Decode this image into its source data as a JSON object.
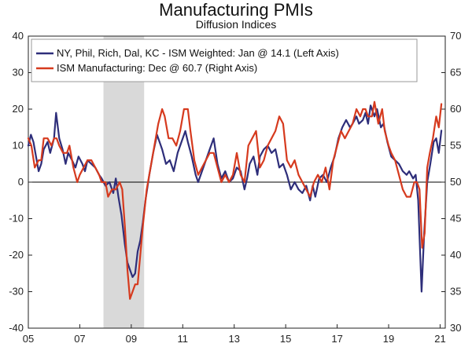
{
  "chart_data": {
    "type": "line",
    "title": "Manufacturing PMIs",
    "subtitle": "Diffusion Indices",
    "x_ticks": [
      "05",
      "07",
      "09",
      "11",
      "13",
      "15",
      "17",
      "19",
      "21"
    ],
    "x_tick_values": [
      2005,
      2007,
      2009,
      2011,
      2013,
      2015,
      2017,
      2019,
      2021
    ],
    "x_range": [
      2005,
      2021.2
    ],
    "left_axis": {
      "range": [
        -40,
        40
      ],
      "ticks": [
        40,
        30,
        20,
        10,
        0,
        -10,
        -20,
        -30,
        -40
      ]
    },
    "right_axis": {
      "range": [
        30,
        70
      ],
      "ticks": [
        70,
        65,
        60,
        55,
        50,
        45,
        40,
        35,
        30
      ]
    },
    "recession": {
      "start": 2007.92,
      "end": 2009.5
    },
    "zero_line": 0,
    "legend": {
      "position": "top-left"
    },
    "colors": {
      "series1": "#2e2e7a",
      "series2": "#d63a1e",
      "recession": "#d9d9d9",
      "axis": "#222222"
    },
    "series": [
      {
        "name": "NY, Phil, Rich, Dal, KC - ISM Weighted: Jan @ 14.1  (Left Axis)",
        "axis": "left",
        "points": [
          [
            2005.0,
            10
          ],
          [
            2005.1,
            13
          ],
          [
            2005.2,
            11
          ],
          [
            2005.3,
            7
          ],
          [
            2005.4,
            3
          ],
          [
            2005.5,
            5
          ],
          [
            2005.6,
            9
          ],
          [
            2005.75,
            11
          ],
          [
            2005.85,
            8
          ],
          [
            2006.0,
            12
          ],
          [
            2006.08,
            19
          ],
          [
            2006.2,
            12
          ],
          [
            2006.33,
            9
          ],
          [
            2006.45,
            5
          ],
          [
            2006.55,
            8
          ],
          [
            2006.7,
            6
          ],
          [
            2006.83,
            4
          ],
          [
            2006.95,
            7
          ],
          [
            2007.1,
            5
          ],
          [
            2007.2,
            3
          ],
          [
            2007.3,
            6
          ],
          [
            2007.45,
            5
          ],
          [
            2007.6,
            4
          ],
          [
            2007.75,
            2
          ],
          [
            2007.85,
            1
          ],
          [
            2008.0,
            -1
          ],
          [
            2008.15,
            0
          ],
          [
            2008.3,
            -3
          ],
          [
            2008.4,
            1
          ],
          [
            2008.5,
            -4
          ],
          [
            2008.62,
            -9
          ],
          [
            2008.75,
            -17
          ],
          [
            2008.85,
            -22
          ],
          [
            2008.95,
            -24
          ],
          [
            2009.05,
            -26
          ],
          [
            2009.15,
            -25
          ],
          [
            2009.25,
            -19
          ],
          [
            2009.35,
            -16
          ],
          [
            2009.45,
            -11
          ],
          [
            2009.55,
            -5
          ],
          [
            2009.7,
            2
          ],
          [
            2009.85,
            8
          ],
          [
            2010.0,
            13
          ],
          [
            2010.2,
            9
          ],
          [
            2010.35,
            5
          ],
          [
            2010.5,
            6
          ],
          [
            2010.65,
            3
          ],
          [
            2010.8,
            8
          ],
          [
            2010.95,
            11
          ],
          [
            2011.1,
            14
          ],
          [
            2011.2,
            11
          ],
          [
            2011.35,
            7
          ],
          [
            2011.5,
            2
          ],
          [
            2011.6,
            0
          ],
          [
            2011.75,
            3
          ],
          [
            2011.9,
            6
          ],
          [
            2012.05,
            9
          ],
          [
            2012.2,
            12
          ],
          [
            2012.35,
            5
          ],
          [
            2012.5,
            1
          ],
          [
            2012.65,
            3
          ],
          [
            2012.8,
            0
          ],
          [
            2012.95,
            1
          ],
          [
            2013.1,
            4
          ],
          [
            2013.25,
            3
          ],
          [
            2013.4,
            -2
          ],
          [
            2013.5,
            1
          ],
          [
            2013.6,
            5
          ],
          [
            2013.75,
            7
          ],
          [
            2013.9,
            2
          ],
          [
            2014.0,
            7
          ],
          [
            2014.15,
            9
          ],
          [
            2014.3,
            10
          ],
          [
            2014.45,
            8
          ],
          [
            2014.6,
            9
          ],
          [
            2014.75,
            4
          ],
          [
            2014.9,
            5
          ],
          [
            2015.05,
            2
          ],
          [
            2015.2,
            -2
          ],
          [
            2015.35,
            0
          ],
          [
            2015.5,
            -2
          ],
          [
            2015.65,
            -3
          ],
          [
            2015.8,
            -1
          ],
          [
            2015.95,
            -5
          ],
          [
            2016.05,
            -1
          ],
          [
            2016.15,
            -4
          ],
          [
            2016.3,
            1
          ],
          [
            2016.45,
            2
          ],
          [
            2016.6,
            0
          ],
          [
            2016.75,
            4
          ],
          [
            2016.9,
            7
          ],
          [
            2017.05,
            12
          ],
          [
            2017.2,
            15
          ],
          [
            2017.35,
            17
          ],
          [
            2017.5,
            15
          ],
          [
            2017.6,
            16
          ],
          [
            2017.75,
            18
          ],
          [
            2017.85,
            16
          ],
          [
            2018.0,
            17
          ],
          [
            2018.1,
            19
          ],
          [
            2018.2,
            16
          ],
          [
            2018.3,
            21
          ],
          [
            2018.45,
            18
          ],
          [
            2018.55,
            20
          ],
          [
            2018.7,
            15
          ],
          [
            2018.8,
            16
          ],
          [
            2018.95,
            11
          ],
          [
            2019.1,
            7
          ],
          [
            2019.25,
            6
          ],
          [
            2019.4,
            5
          ],
          [
            2019.55,
            3
          ],
          [
            2019.7,
            2
          ],
          [
            2019.8,
            3
          ],
          [
            2019.95,
            1
          ],
          [
            2020.05,
            2
          ],
          [
            2020.15,
            -5
          ],
          [
            2020.28,
            -30
          ],
          [
            2020.38,
            -14
          ],
          [
            2020.5,
            0
          ],
          [
            2020.62,
            5
          ],
          [
            2020.75,
            11
          ],
          [
            2020.85,
            12
          ],
          [
            2020.95,
            8
          ],
          [
            2021.05,
            14.1
          ]
        ]
      },
      {
        "name": "ISM Manufacturing: Dec @ 60.7 (Right Axis)",
        "axis": "right",
        "points": [
          [
            2005.0,
            56
          ],
          [
            2005.12,
            55
          ],
          [
            2005.25,
            52
          ],
          [
            2005.4,
            53
          ],
          [
            2005.5,
            53
          ],
          [
            2005.6,
            56
          ],
          [
            2005.75,
            56
          ],
          [
            2005.9,
            55
          ],
          [
            2006.0,
            56
          ],
          [
            2006.1,
            56
          ],
          [
            2006.2,
            55
          ],
          [
            2006.35,
            54
          ],
          [
            2006.5,
            54
          ],
          [
            2006.6,
            55
          ],
          [
            2006.75,
            52
          ],
          [
            2006.9,
            50
          ],
          [
            2007.0,
            51
          ],
          [
            2007.15,
            52
          ],
          [
            2007.3,
            53
          ],
          [
            2007.45,
            53
          ],
          [
            2007.6,
            52
          ],
          [
            2007.75,
            51
          ],
          [
            2007.85,
            50
          ],
          [
            2008.0,
            50
          ],
          [
            2008.1,
            48
          ],
          [
            2008.25,
            49
          ],
          [
            2008.4,
            49
          ],
          [
            2008.55,
            50
          ],
          [
            2008.65,
            49
          ],
          [
            2008.75,
            44
          ],
          [
            2008.85,
            38
          ],
          [
            2008.95,
            34
          ],
          [
            2009.05,
            35
          ],
          [
            2009.15,
            36
          ],
          [
            2009.25,
            36
          ],
          [
            2009.35,
            40
          ],
          [
            2009.45,
            44
          ],
          [
            2009.6,
            49
          ],
          [
            2009.75,
            52
          ],
          [
            2009.9,
            55
          ],
          [
            2010.05,
            58
          ],
          [
            2010.2,
            60
          ],
          [
            2010.3,
            59
          ],
          [
            2010.45,
            56
          ],
          [
            2010.6,
            56
          ],
          [
            2010.75,
            55
          ],
          [
            2010.9,
            57
          ],
          [
            2011.05,
            60
          ],
          [
            2011.2,
            60
          ],
          [
            2011.3,
            57
          ],
          [
            2011.45,
            53
          ],
          [
            2011.6,
            51
          ],
          [
            2011.75,
            52
          ],
          [
            2011.9,
            53
          ],
          [
            2012.05,
            54
          ],
          [
            2012.2,
            54
          ],
          [
            2012.35,
            52
          ],
          [
            2012.5,
            50
          ],
          [
            2012.65,
            51
          ],
          [
            2012.8,
            50
          ],
          [
            2012.95,
            51
          ],
          [
            2013.1,
            54
          ],
          [
            2013.25,
            51
          ],
          [
            2013.4,
            50
          ],
          [
            2013.55,
            55
          ],
          [
            2013.7,
            56
          ],
          [
            2013.85,
            57
          ],
          [
            2014.0,
            52
          ],
          [
            2014.15,
            53
          ],
          [
            2014.3,
            55
          ],
          [
            2014.45,
            56
          ],
          [
            2014.6,
            57
          ],
          [
            2014.75,
            59
          ],
          [
            2014.9,
            58
          ],
          [
            2015.05,
            53
          ],
          [
            2015.2,
            52
          ],
          [
            2015.35,
            53
          ],
          [
            2015.5,
            51
          ],
          [
            2015.65,
            50
          ],
          [
            2015.8,
            49
          ],
          [
            2015.95,
            48
          ],
          [
            2016.1,
            50
          ],
          [
            2016.25,
            51
          ],
          [
            2016.4,
            50
          ],
          [
            2016.55,
            52
          ],
          [
            2016.7,
            49
          ],
          [
            2016.85,
            53
          ],
          [
            2017.0,
            55
          ],
          [
            2017.15,
            57
          ],
          [
            2017.3,
            56
          ],
          [
            2017.45,
            57
          ],
          [
            2017.6,
            58
          ],
          [
            2017.75,
            60
          ],
          [
            2017.9,
            59
          ],
          [
            2018.0,
            60
          ],
          [
            2018.1,
            60
          ],
          [
            2018.2,
            59
          ],
          [
            2018.35,
            59
          ],
          [
            2018.45,
            61
          ],
          [
            2018.6,
            58
          ],
          [
            2018.75,
            60
          ],
          [
            2018.85,
            57
          ],
          [
            2019.0,
            55
          ],
          [
            2019.1,
            54
          ],
          [
            2019.25,
            53
          ],
          [
            2019.4,
            51
          ],
          [
            2019.55,
            49
          ],
          [
            2019.7,
            48
          ],
          [
            2019.85,
            48
          ],
          [
            2020.0,
            50
          ],
          [
            2020.1,
            50
          ],
          [
            2020.2,
            49
          ],
          [
            2020.3,
            41
          ],
          [
            2020.4,
            43
          ],
          [
            2020.5,
            52
          ],
          [
            2020.6,
            54
          ],
          [
            2020.72,
            56
          ],
          [
            2020.85,
            59
          ],
          [
            2020.95,
            57.5
          ],
          [
            2021.05,
            60.7
          ]
        ]
      }
    ]
  }
}
